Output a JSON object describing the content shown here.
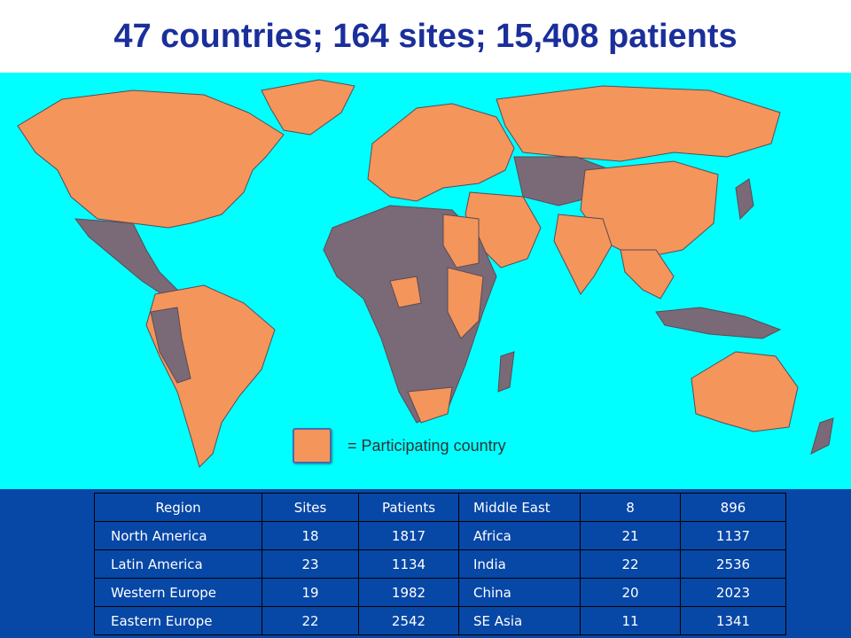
{
  "title": "47 countries; 164 sites; 15,408 patients",
  "legend": {
    "label": "= Participating country"
  },
  "colors": {
    "ocean": "#00ffff",
    "participating": "#f4955b",
    "non_participating": "#7a6a77",
    "title": "#1a2f9b",
    "table_background": "#0747a6"
  },
  "table": {
    "header": {
      "region": "Region",
      "sites": "Sites",
      "patients": "Patients",
      "region2": "Middle East",
      "sites2": "8",
      "patients2": "896"
    },
    "rows": [
      {
        "region": "North America",
        "sites": "18",
        "patients": "1817",
        "region2": "Africa",
        "sites2": "21",
        "patients2": "1137"
      },
      {
        "region": "Latin America",
        "sites": "23",
        "patients": "1134",
        "region2": "India",
        "sites2": "22",
        "patients2": "2536"
      },
      {
        "region": "Western Europe",
        "sites": "19",
        "patients": "1982",
        "region2": "China",
        "sites2": "20",
        "patients2": "2023"
      },
      {
        "region": "Eastern Europe",
        "sites": "22",
        "patients": "2542",
        "region2": "SE Asia",
        "sites2": "11",
        "patients2": "1341"
      }
    ]
  }
}
